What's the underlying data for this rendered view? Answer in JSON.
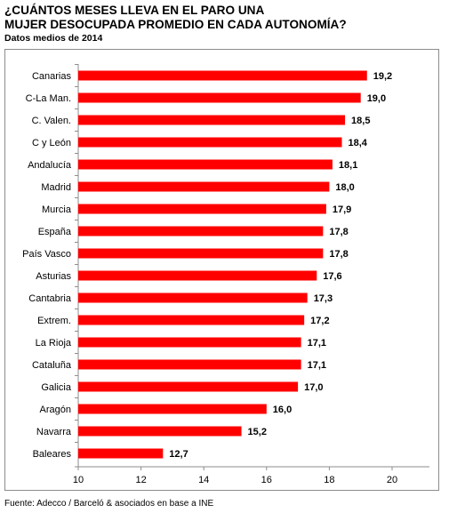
{
  "title_line1": "¿CUÁNTOS MESES LLEVA EN EL PARO UNA",
  "title_line2": "MUJER DESOCUPADA PROMEDIO EN CADA AUTONOMÍA?",
  "subtitle": "Datos medios de 2014",
  "source": "Fuente: Adecco / Barceló & asociados en base a INE",
  "colors": {
    "bar": "#ff0000",
    "axis": "#8c8c8c"
  },
  "chart_data": {
    "type": "bar",
    "orientation": "horizontal",
    "title": "¿CUÁNTOS MESES LLEVA EN EL PARO UNA MUJER DESOCUPADA PROMEDIO EN CADA AUTONOMÍA?",
    "subtitle": "Datos medios de 2014",
    "categories": [
      "Canarias",
      "C-La Man.",
      "C. Valen.",
      "C y León",
      "Andalucía",
      "Madrid",
      "Murcia",
      "España",
      "País Vasco",
      "Asturias",
      "Cantabria",
      "Extrem.",
      "La Rioja",
      "Cataluña",
      "Galicia",
      "Aragón",
      "Navarra",
      "Baleares"
    ],
    "values": [
      19.2,
      19.0,
      18.5,
      18.4,
      18.1,
      18.0,
      17.9,
      17.8,
      17.8,
      17.6,
      17.3,
      17.2,
      17.1,
      17.1,
      17.0,
      16.0,
      15.2,
      12.7
    ],
    "value_labels": [
      "19,2",
      "19,0",
      "18,5",
      "18,4",
      "18,1",
      "18,0",
      "17,9",
      "17,8",
      "17,8",
      "17,6",
      "17,3",
      "17,2",
      "17,1",
      "17,1",
      "17,0",
      "16,0",
      "15,2",
      "12,7"
    ],
    "xlim": [
      10,
      20
    ],
    "xticks": [
      10,
      12,
      14,
      16,
      18,
      20
    ],
    "xtick_labels": [
      "10",
      "12",
      "14",
      "16",
      "18",
      "20"
    ],
    "xlabel": "",
    "ylabel": "",
    "grid": false,
    "legend": "none"
  }
}
